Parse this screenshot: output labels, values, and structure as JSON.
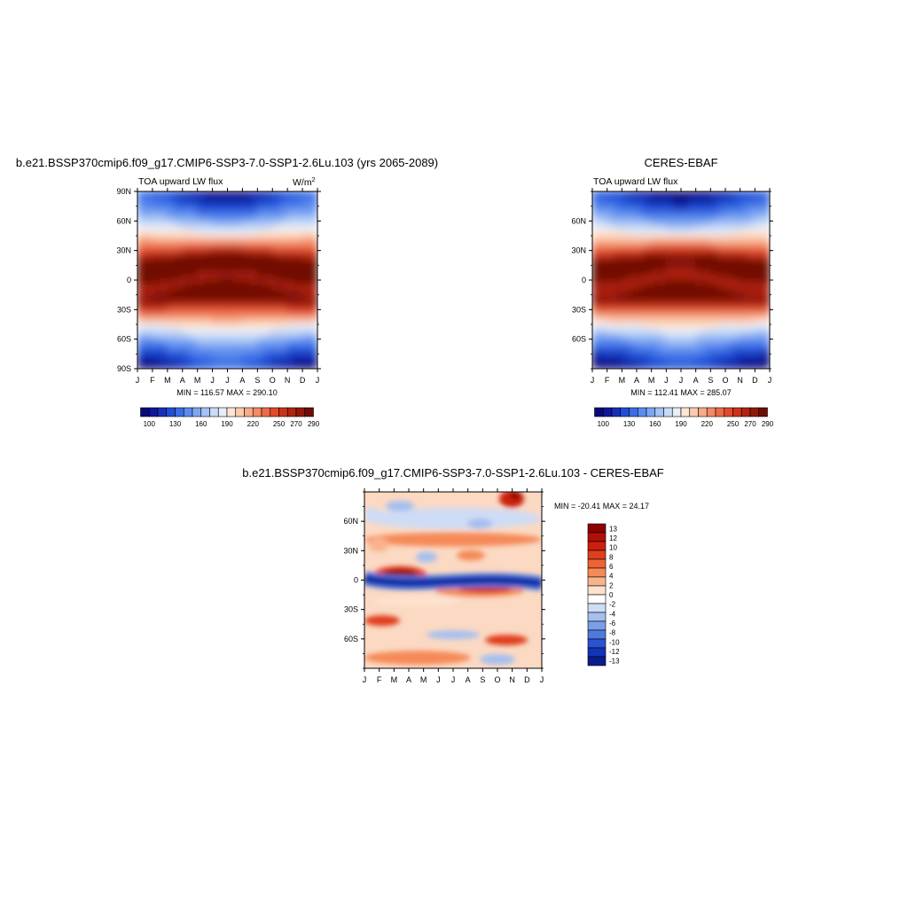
{
  "panels": [
    {
      "id": "model",
      "title": "b.e21.BSSP370cmip6.f09_g17.CMIP6-SSP3-7.0-SSP1-2.6Lu.103 (yrs 2065-2089)",
      "left_label": "TOA upward LW flux",
      "units_base": "W/m",
      "units_exp": "2",
      "stats": "MIN = 116.57 MAX = 290.10"
    },
    {
      "id": "obs",
      "title": "CERES-EBAF",
      "left_label": "TOA upward LW flux",
      "units_base": "",
      "units_exp": "",
      "stats": "MIN = 112.41 MAX = 285.07"
    },
    {
      "id": "diff",
      "title": "b.e21.BSSP370cmip6.f09_g17.CMIP6-SSP3-7.0-SSP1-2.6Lu.103 - CERES-EBAF",
      "stats": "MIN = -20.41 MAX =  24.17"
    }
  ],
  "chart_data": [
    {
      "type": "heatmap",
      "title": "b.e21.BSSP370cmip6.f09_g17.CMIP6-SSP3-7.0-SSP1-2.6Lu.103 (yrs 2065-2089)",
      "x_ticks": [
        "J",
        "F",
        "M",
        "A",
        "M",
        "J",
        "J",
        "A",
        "S",
        "O",
        "N",
        "D",
        "J"
      ],
      "y_ticks": [
        "90S",
        "60S",
        "30S",
        "0",
        "30N",
        "60N",
        "90N"
      ],
      "y_values": [
        -90,
        -60,
        -30,
        0,
        30,
        60,
        90
      ],
      "xlim": [
        0,
        12
      ],
      "ylim": [
        -90,
        90
      ],
      "colorbar_ticks": [
        "100",
        "130",
        "160",
        "190",
        "220",
        "250",
        "270",
        "290"
      ],
      "colorbar_levels": [
        100,
        110,
        120,
        130,
        140,
        150,
        160,
        170,
        180,
        190,
        200,
        210,
        220,
        230,
        240,
        250,
        260,
        270,
        280,
        290
      ],
      "min": 116.57,
      "max": 290.1
    },
    {
      "type": "heatmap",
      "title": "CERES-EBAF",
      "x_ticks": [
        "J",
        "F",
        "M",
        "A",
        "M",
        "J",
        "J",
        "A",
        "S",
        "O",
        "N",
        "D",
        "J"
      ],
      "y_ticks": [
        "60S",
        "30S",
        "0",
        "30N",
        "60N"
      ],
      "y_values": [
        -60,
        -30,
        0,
        30,
        60
      ],
      "xlim": [
        0,
        12
      ],
      "ylim": [
        -90,
        90
      ],
      "colorbar_ticks": [
        "100",
        "130",
        "160",
        "190",
        "220",
        "250",
        "270",
        "290"
      ],
      "colorbar_levels": [
        100,
        110,
        120,
        130,
        140,
        150,
        160,
        170,
        180,
        190,
        200,
        210,
        220,
        230,
        240,
        250,
        260,
        270,
        280,
        290
      ],
      "min": 112.41,
      "max": 285.07
    },
    {
      "type": "heatmap",
      "title": "b.e21.BSSP370cmip6.f09_g17.CMIP6-SSP3-7.0-SSP1-2.6Lu.103 - CERES-EBAF",
      "x_ticks": [
        "J",
        "F",
        "M",
        "A",
        "M",
        "J",
        "J",
        "A",
        "S",
        "O",
        "N",
        "D",
        "J"
      ],
      "y_ticks": [
        "60S",
        "30S",
        "0",
        "30N",
        "60N"
      ],
      "y_values": [
        -60,
        -30,
        0,
        30,
        60
      ],
      "xlim": [
        0,
        12
      ],
      "ylim": [
        -90,
        90
      ],
      "colorbar_ticks": [
        "13",
        "12",
        "10",
        "8",
        "6",
        "4",
        "2",
        "0",
        "-2",
        "-4",
        "-6",
        "-8",
        "-10",
        "-12",
        "-13"
      ],
      "min": -20.41,
      "max": 24.17
    }
  ]
}
